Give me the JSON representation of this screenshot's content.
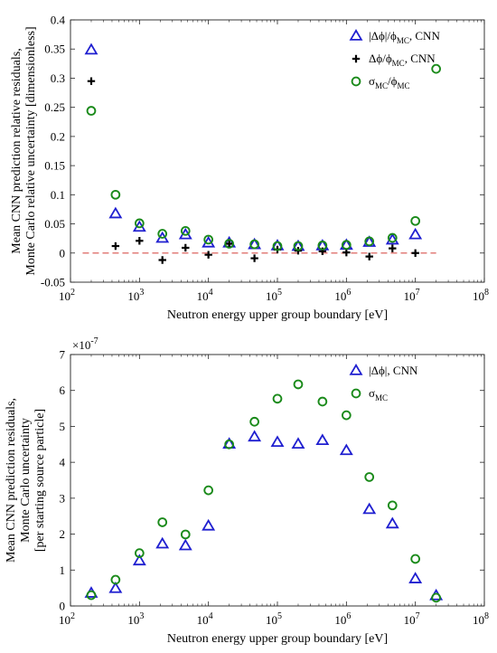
{
  "chart_data": [
    {
      "type": "scatter",
      "xscale": "log",
      "xlim": [
        100,
        100000000
      ],
      "ylim": [
        -0.05,
        0.4
      ],
      "yticks": [
        -0.05,
        0,
        0.05,
        0.1,
        0.15,
        0.2,
        0.25,
        0.3,
        0.35,
        0.4
      ],
      "ytick_labels": [
        "-0.05",
        "0",
        "0.05",
        "0.1",
        "0.15",
        "0.2",
        "0.25",
        "0.3",
        "0.35",
        "0.4"
      ],
      "xtick_bases": [
        "10",
        "10",
        "10",
        "10",
        "10",
        "10",
        "10"
      ],
      "xtick_exps": [
        "2",
        "3",
        "4",
        "5",
        "6",
        "7",
        "8"
      ],
      "xlabel": "Neutron energy upper group boundary [eV]",
      "ylabel_lines": [
        "Mean CNN prediction relative residuals,",
        "Monte Carlo relative uncertainty [dimensionless]"
      ],
      "reference_line": {
        "y": 0,
        "color": "#d9534f",
        "style": "dashed"
      },
      "legend": {
        "position": "top-right",
        "entries": [
          {
            "label": "|Δϕ|/ϕ",
            "sub": "MC",
            "suffix": ", CNN"
          },
          {
            "label": "Δϕ/ϕ",
            "sub": "MC",
            "suffix": ", CNN"
          },
          {
            "label": "σ",
            "sub": "MC",
            "mid": "/ϕ",
            "sub2": "MC"
          }
        ]
      },
      "series": [
        {
          "marker": "triangle",
          "color": "#1f1fd0",
          "x": [
            200,
            450,
            1000,
            2150,
            4650,
            10000,
            20000,
            46500,
            100000,
            200000,
            450000,
            1000000,
            2150000,
            4650000,
            10000000
          ],
          "y": [
            0.348,
            0.067,
            0.044,
            0.025,
            0.031,
            0.017,
            0.017,
            0.014,
            0.012,
            0.011,
            0.012,
            0.013,
            0.018,
            0.022,
            0.031
          ]
        },
        {
          "marker": "plus",
          "color": "#000000",
          "x": [
            200,
            450,
            1000,
            2150,
            4650,
            10000,
            20000,
            46500,
            100000,
            200000,
            450000,
            1000000,
            2150000,
            4650000,
            10000000
          ],
          "y": [
            0.295,
            0.012,
            0.021,
            -0.012,
            0.009,
            -0.003,
            0.016,
            -0.009,
            0.006,
            0.004,
            0.003,
            0.001,
            -0.006,
            0.008,
            0.0
          ]
        },
        {
          "marker": "circle",
          "color": "#1a8a1a",
          "x": [
            200,
            450,
            1000,
            2150,
            4650,
            10000,
            20000,
            46500,
            100000,
            200000,
            450000,
            1000000,
            2150000,
            4650000,
            10000000,
            20000000
          ],
          "y": [
            0.244,
            0.1,
            0.051,
            0.033,
            0.038,
            0.023,
            0.016,
            0.015,
            0.012,
            0.012,
            0.013,
            0.014,
            0.02,
            0.026,
            0.055,
            0.316
          ]
        }
      ]
    },
    {
      "type": "scatter",
      "xscale": "log",
      "xlim": [
        100,
        100000000
      ],
      "ylim": [
        0,
        7
      ],
      "yticks": [
        0,
        1,
        2,
        3,
        4,
        5,
        6,
        7
      ],
      "ytick_labels": [
        "0",
        "1",
        "2",
        "3",
        "4",
        "5",
        "6",
        "7"
      ],
      "y_multiplier": "×10",
      "y_multiplier_exp": "-7",
      "xtick_bases": [
        "10",
        "10",
        "10",
        "10",
        "10",
        "10",
        "10"
      ],
      "xtick_exps": [
        "2",
        "3",
        "4",
        "5",
        "6",
        "7",
        "8"
      ],
      "xlabel": "Neutron energy upper group boundary [eV]",
      "ylabel_lines": [
        "Mean CNN prediction  residuals,",
        "Monte Carlo uncertainty",
        "[per starting source particle]"
      ],
      "legend": {
        "position": "top-right",
        "entries": [
          {
            "label": "|Δϕ|",
            "suffix": ", CNN"
          },
          {
            "label": "σ",
            "sub": "MC"
          }
        ]
      },
      "series": [
        {
          "marker": "triangle",
          "color": "#1f1fd0",
          "x": [
            200,
            450,
            1000,
            2150,
            4650,
            10000,
            20000,
            46500,
            100000,
            200000,
            450000,
            1000000,
            2150000,
            4650000,
            10000000,
            20000000
          ],
          "y": [
            0.35,
            0.48,
            1.25,
            1.72,
            1.67,
            2.22,
            4.5,
            4.7,
            4.55,
            4.5,
            4.6,
            4.32,
            2.68,
            2.28,
            0.75,
            0.28
          ]
        },
        {
          "marker": "circle",
          "color": "#1a8a1a",
          "x": [
            200,
            450,
            1000,
            2150,
            4650,
            10000,
            20000,
            46500,
            100000,
            200000,
            450000,
            1000000,
            2150000,
            4650000,
            10000000,
            20000000
          ],
          "y": [
            0.3,
            0.73,
            1.47,
            2.33,
            1.99,
            3.22,
            4.5,
            5.13,
            5.77,
            6.17,
            5.69,
            5.31,
            3.59,
            2.8,
            1.31,
            0.23
          ]
        }
      ]
    }
  ]
}
